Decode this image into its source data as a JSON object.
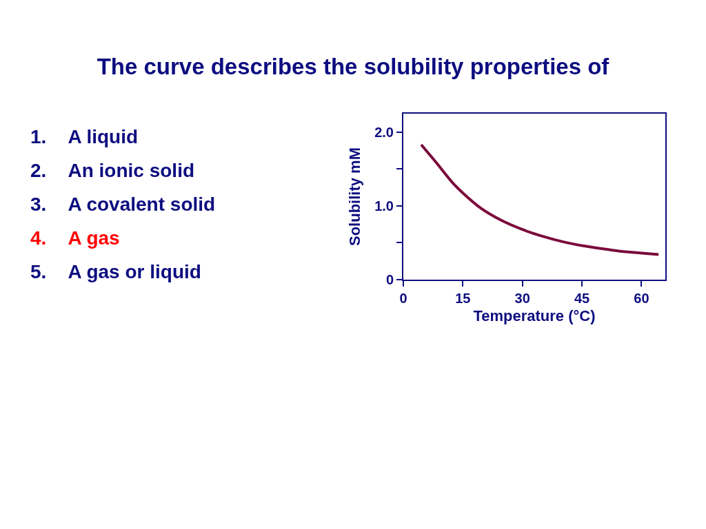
{
  "chart_data": {
    "type": "line",
    "title": "The curve describes the solubility properties of",
    "xlabel": "Temperature (°C)",
    "ylabel": "Solubility mM",
    "annotations": [
      "1. A liquid",
      "2. An ionic solid",
      "3. A covalent solid",
      "4. A gas",
      "5. A gas or liquid"
    ],
    "x": [
      4.5,
      8.4,
      12.3,
      15.1,
      19.5,
      24.5,
      30.0,
      35.0,
      40.5,
      45.2,
      50.0,
      55.5,
      60.1,
      64.3
    ],
    "series": [
      {
        "color": "#7b0a3c",
        "values": [
          1.83,
          1.58,
          1.32,
          1.17,
          0.97,
          0.81,
          0.68,
          0.59,
          0.51,
          0.46,
          0.42,
          0.38,
          0.36,
          0.34
        ]
      }
    ],
    "xlim": [
      0,
      66
    ],
    "xticks": [
      0,
      15,
      30,
      45,
      60
    ],
    "ylim": [
      0,
      2.25
    ],
    "yticks": [
      {
        "value": 0,
        "label": "0"
      },
      {
        "value": 0.5,
        "label": null
      },
      {
        "value": 1,
        "label": "1.0"
      },
      {
        "value": 1.5,
        "label": null
      },
      {
        "value": 2,
        "label": "2.0"
      }
    ],
    "grid": false
  }
}
